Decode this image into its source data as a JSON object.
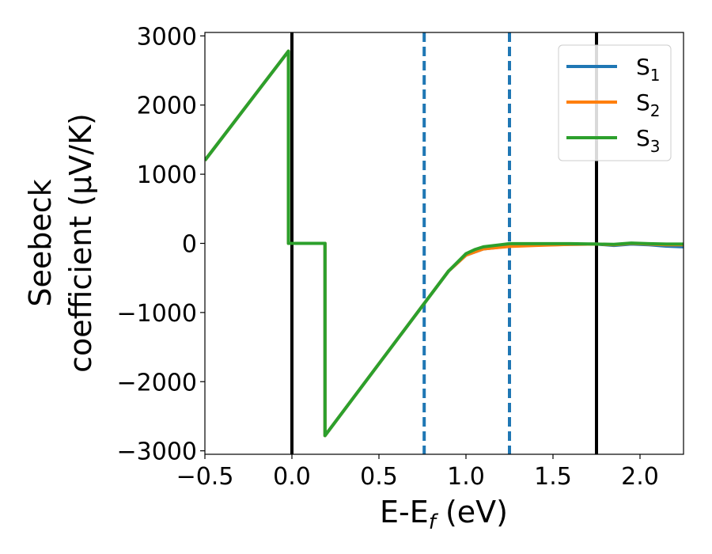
{
  "chart_data": {
    "type": "line",
    "title": "",
    "xlabel": "E-E",
    "xlabel_sub": "f",
    "xlabel_unit": " (eV)",
    "ylabel_line1": "Seebeck",
    "ylabel_line2": "coefficient  (μV/K)",
    "xlim": [
      -0.5,
      2.25
    ],
    "ylim": [
      -3050,
      3050
    ],
    "x_ticks": [
      -0.5,
      0.0,
      0.5,
      1.0,
      1.5,
      2.0
    ],
    "x_tick_labels": [
      "−0.5",
      "0.0",
      "0.5",
      "1.0",
      "1.5",
      "2.0"
    ],
    "y_ticks": [
      3000,
      2000,
      1000,
      0,
      -1000,
      -2000,
      -3000
    ],
    "y_tick_labels": [
      "3000",
      "2000",
      "1000",
      "0",
      "−1000",
      "−2000",
      "−3000"
    ],
    "grid": false,
    "legend_position": "top-right",
    "vlines": [
      {
        "x": 0.0,
        "style": "solid",
        "color": "#000000"
      },
      {
        "x": 1.75,
        "style": "solid",
        "color": "#000000"
      },
      {
        "x": 0.76,
        "style": "dashed",
        "color": "#1f77b4"
      },
      {
        "x": 1.25,
        "style": "dashed",
        "color": "#1f77b4"
      }
    ],
    "series": [
      {
        "name": "S",
        "sub": "1",
        "color": "#1f77b4",
        "x": [
          -0.5,
          -0.02,
          -0.02,
          0.19,
          0.19,
          0.76,
          0.9,
          1.0,
          1.1,
          1.25,
          1.4,
          1.6,
          1.75,
          1.85,
          1.95,
          2.05,
          2.15,
          2.25
        ],
        "y": [
          1200,
          2780,
          0,
          0,
          -2780,
          -870,
          -400,
          -170,
          -80,
          -40,
          -25,
          -15,
          -10,
          -30,
          -10,
          -20,
          -40,
          -50
        ]
      },
      {
        "name": "S",
        "sub": "2",
        "color": "#ff7f0e",
        "x": [
          -0.5,
          -0.02,
          -0.02,
          0.19,
          0.19,
          0.76,
          0.9,
          1.0,
          1.1,
          1.25,
          1.4,
          1.6,
          1.75,
          1.85,
          1.95,
          2.05,
          2.15,
          2.25
        ],
        "y": [
          1200,
          2780,
          0,
          0,
          -2780,
          -870,
          -400,
          -170,
          -80,
          -45,
          -30,
          -15,
          -10,
          -20,
          0,
          -10,
          -20,
          -20
        ]
      },
      {
        "name": "S",
        "sub": "3",
        "color": "#2ca02c",
        "x": [
          -0.5,
          -0.02,
          -0.02,
          0.19,
          0.19,
          0.76,
          0.9,
          1.0,
          1.05,
          1.1,
          1.25,
          1.4,
          1.6,
          1.75,
          1.85,
          1.95,
          2.05,
          2.15,
          2.25
        ],
        "y": [
          1200,
          2780,
          0,
          0,
          -2780,
          -870,
          -400,
          -150,
          -90,
          -50,
          -5,
          -5,
          -5,
          -10,
          -15,
          5,
          -5,
          -10,
          -10
        ]
      }
    ]
  }
}
